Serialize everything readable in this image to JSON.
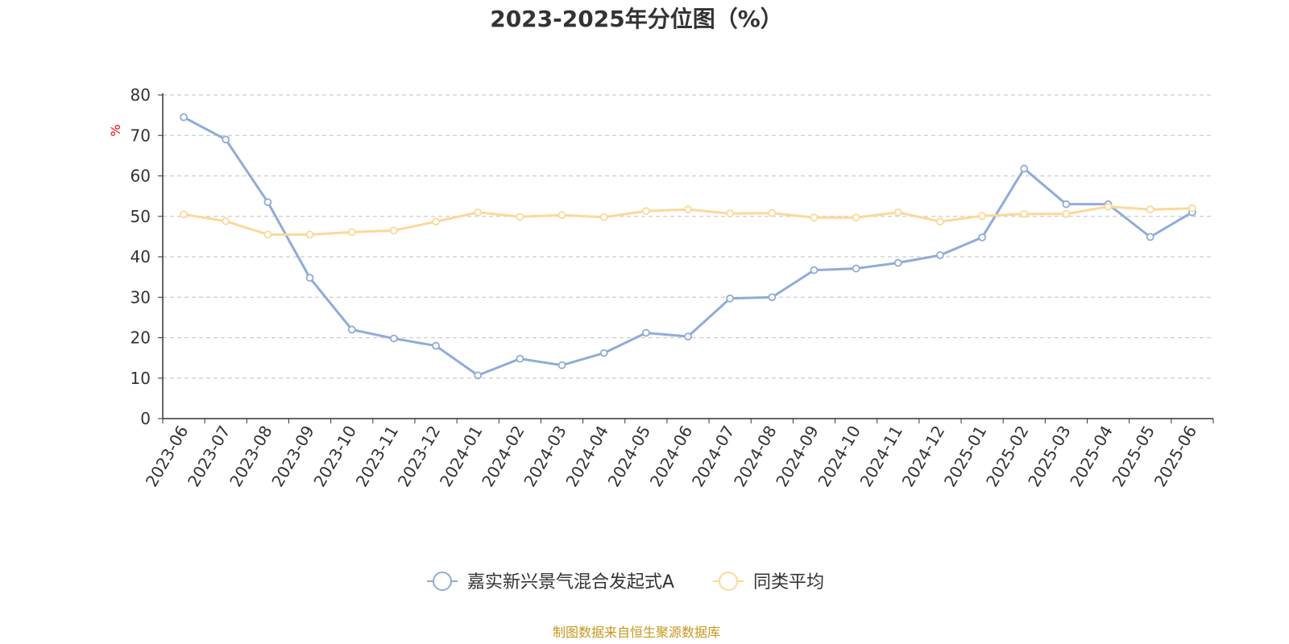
{
  "chart_data": {
    "type": "line",
    "title": "2023-2025年分位图（%）",
    "y_unit": "%",
    "ylim": [
      0,
      80
    ],
    "y_ticks": [
      "0",
      "10",
      "20",
      "30",
      "40",
      "50",
      "60",
      "70",
      "80"
    ],
    "grid": true,
    "legend_position": "bottom",
    "categories": [
      "2023-06",
      "2023-07",
      "2023-08",
      "2023-09",
      "2023-10",
      "2023-11",
      "2023-12",
      "2024-01",
      "2024-02",
      "2024-03",
      "2024-04",
      "2024-05",
      "2024-06",
      "2024-07",
      "2024-08",
      "2024-09",
      "2024-10",
      "2024-11",
      "2024-12",
      "2025-01",
      "2025-02",
      "2025-03",
      "2025-04",
      "2025-05",
      "2025-06"
    ],
    "series": [
      {
        "name": "嘉实新兴景气混合发起式A",
        "color": "#8facd8",
        "values": [
          74.5,
          69.0,
          53.5,
          34.8,
          22.0,
          19.8,
          18.0,
          10.7,
          14.8,
          13.2,
          16.2,
          21.2,
          20.3,
          29.7,
          30.0,
          36.7,
          37.1,
          38.5,
          40.4,
          44.8,
          61.8,
          53.0,
          53.0,
          44.9,
          51.0
        ]
      },
      {
        "name": "同类平均",
        "color": "#fcd899",
        "values": [
          50.5,
          48.8,
          45.5,
          45.5,
          46.1,
          46.5,
          48.7,
          51.0,
          49.9,
          50.3,
          49.8,
          51.3,
          51.7,
          50.7,
          50.8,
          49.7,
          49.7,
          51.0,
          48.7,
          50.1,
          50.6,
          50.6,
          52.4,
          51.7,
          52.0
        ]
      }
    ]
  },
  "source_text": "制图数据来自恒生聚源数据库"
}
